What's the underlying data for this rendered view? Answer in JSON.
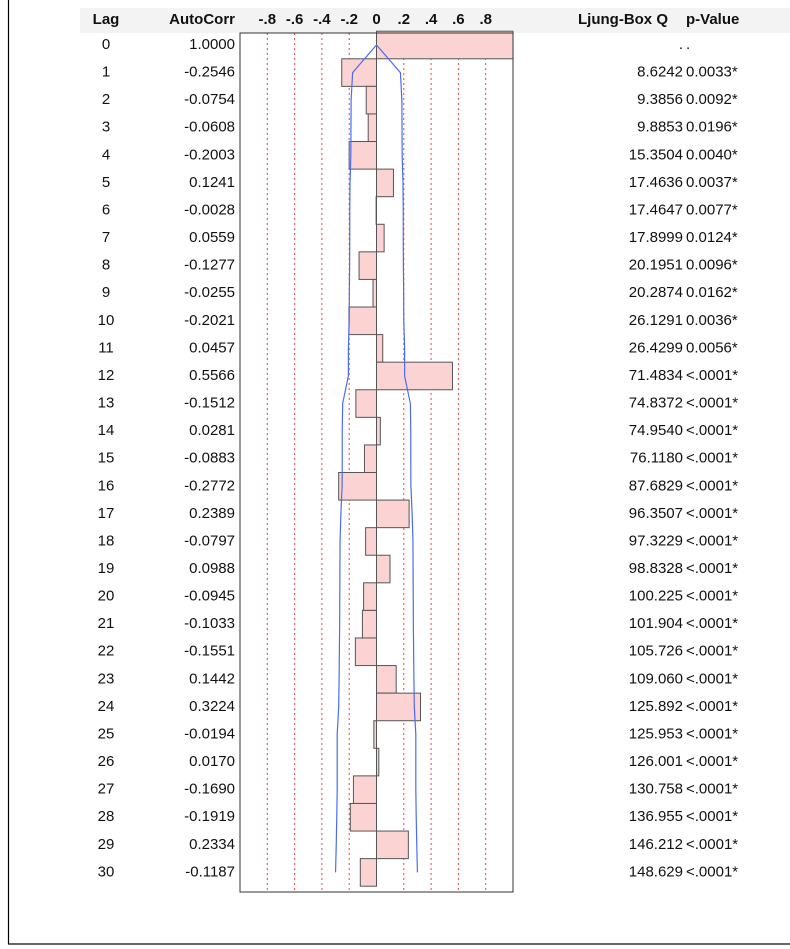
{
  "chart_data": {
    "type": "bar",
    "orientation": "horizontal",
    "headers": [
      "Lag",
      "AutoCorr",
      "Ljung-Box Q",
      "p-Value"
    ],
    "categories": [
      0,
      1,
      2,
      3,
      4,
      5,
      6,
      7,
      8,
      9,
      10,
      11,
      12,
      13,
      14,
      15,
      16,
      17,
      18,
      19,
      20,
      21,
      22,
      23,
      24,
      25,
      26,
      27,
      28,
      29,
      30
    ],
    "values": [
      1.0,
      -0.2546,
      -0.0754,
      -0.0608,
      -0.2003,
      0.1241,
      -0.0028,
      0.0559,
      -0.1277,
      -0.0255,
      -0.2021,
      0.0457,
      0.5566,
      -0.1512,
      0.0281,
      -0.0883,
      -0.2772,
      0.2389,
      -0.0797,
      0.0988,
      -0.0945,
      -0.1033,
      -0.1551,
      0.1442,
      0.3224,
      -0.0194,
      0.017,
      -0.169,
      -0.1919,
      0.2334,
      -0.1187
    ],
    "value_labels": [
      "1.0000",
      "-0.2546",
      "-0.0754",
      "-0.0608",
      "-0.2003",
      "0.1241",
      "-0.0028",
      "0.0559",
      "-0.1277",
      "-0.0255",
      "-0.2021",
      "0.0457",
      "0.5566",
      "-0.1512",
      "0.0281",
      "-0.0883",
      "-0.2772",
      "0.2389",
      "-0.0797",
      "0.0988",
      "-0.0945",
      "-0.1033",
      "-0.1551",
      "0.1442",
      "0.3224",
      "-0.0194",
      "0.0170",
      "-0.1690",
      "-0.1919",
      "0.2334",
      "-0.1187"
    ],
    "ljung_box_q": [
      ".",
      "8.6242",
      "9.3856",
      "9.8853",
      "15.3504",
      "17.4636",
      "17.4647",
      "17.8999",
      "20.1951",
      "20.2874",
      "26.1291",
      "26.4299",
      "71.4834",
      "74.8372",
      "74.9540",
      "76.1180",
      "87.6829",
      "96.3507",
      "97.3229",
      "98.8328",
      "100.225",
      "101.904",
      "105.726",
      "109.060",
      "125.892",
      "125.953",
      "126.001",
      "130.758",
      "136.955",
      "146.212",
      "148.629"
    ],
    "p_values": [
      ".",
      "0.0033*",
      "0.0092*",
      "0.0196*",
      "0.0040*",
      "0.0037*",
      "0.0077*",
      "0.0124*",
      "0.0096*",
      "0.0162*",
      "0.0036*",
      "0.0056*",
      "<.0001*",
      "<.0001*",
      "<.0001*",
      "<.0001*",
      "<.0001*",
      "<.0001*",
      "<.0001*",
      "<.0001*",
      "<.0001*",
      "<.0001*",
      "<.0001*",
      "<.0001*",
      "<.0001*",
      "<.0001*",
      "<.0001*",
      "<.0001*",
      "<.0001*",
      "<.0001*",
      "<.0001*"
    ],
    "confidence_limits": [
      0,
      0.175,
      0.186,
      0.187,
      0.188,
      0.194,
      0.196,
      0.196,
      0.197,
      0.199,
      0.2,
      0.206,
      0.206,
      0.248,
      0.251,
      0.251,
      0.252,
      0.261,
      0.267,
      0.268,
      0.269,
      0.27,
      0.272,
      0.274,
      0.277,
      0.288,
      0.288,
      0.288,
      0.291,
      0.295,
      0.3
    ],
    "color": "#fcd3d3",
    "limit_color": "#4a6cf2",
    "grid_color": "#e04848",
    "grid": true,
    "xlim": [
      -1,
      1
    ],
    "xticks": [
      {
        "value": -0.8,
        "label": "-.8"
      },
      {
        "value": -0.6,
        "label": "-.6"
      },
      {
        "value": -0.4,
        "label": "-.4"
      },
      {
        "value": -0.2,
        "label": "-.2"
      },
      0,
      {
        "value": 0.2,
        "label": ".2"
      },
      {
        "value": 0.4,
        "label": ".4"
      },
      {
        "value": 0.6,
        "label": ".6"
      },
      {
        "value": 0.8,
        "label": ".8"
      }
    ]
  }
}
